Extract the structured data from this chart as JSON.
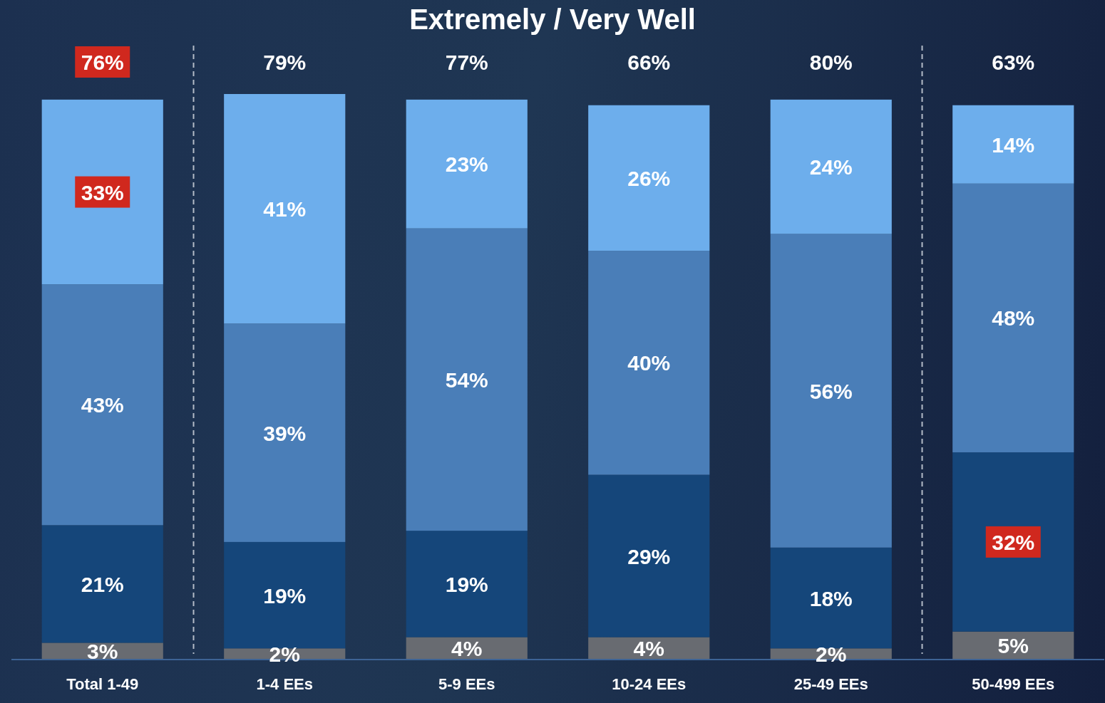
{
  "chart_data": {
    "type": "bar",
    "title": "Extremely / Very Well",
    "categories": [
      "Total 1-49",
      "1-4 EEs",
      "5-9 EEs",
      "10-24 EEs",
      "25-49 EEs",
      "50-499 EEs"
    ],
    "stacked": true,
    "series": [
      {
        "color": "#686b71",
        "values": [
          3,
          2,
          4,
          4,
          2,
          5
        ],
        "value_labels": [
          "3%",
          "2%",
          "4%",
          "4%",
          "2%",
          "5%"
        ]
      },
      {
        "color": "#15467a",
        "values": [
          21,
          19,
          19,
          29,
          18,
          32
        ],
        "value_labels": [
          "21%",
          "19%",
          "19%",
          "29%",
          "18%",
          null
        ]
      },
      {
        "color": "#4a7eb8",
        "values": [
          43,
          39,
          54,
          40,
          56,
          48
        ],
        "value_labels": [
          "43%",
          "39%",
          "54%",
          "40%",
          "56%",
          "48%"
        ]
      },
      {
        "color": "#6daeec",
        "values": [
          33,
          41,
          23,
          26,
          24,
          14
        ],
        "value_labels": [
          null,
          "41%",
          "23%",
          "26%",
          "24%",
          "14%"
        ]
      }
    ],
    "annotations": [
      {
        "text": "79%",
        "x": "1-4 EEs",
        "y": 101
      },
      {
        "text": "77%",
        "x": "5-9 EEs",
        "y": 100
      },
      {
        "text": "66%",
        "x": "10-24 EEs",
        "y": 99
      },
      {
        "text": "80%",
        "x": "25-49 EEs",
        "y": 100
      },
      {
        "text": "63%",
        "x": "50-499 EEs",
        "y": 99
      },
      "76%",
      "33%",
      "32%"
    ]
  }
}
